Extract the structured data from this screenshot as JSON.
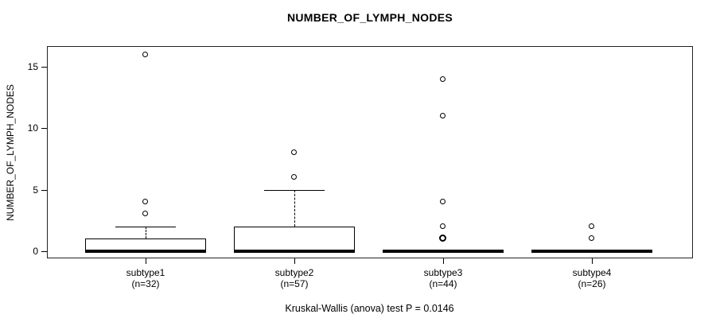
{
  "chart_data": {
    "type": "boxplot",
    "title": "NUMBER_OF_LYMPH_NODES",
    "ylabel": "NUMBER_OF_LYMPH_NODES",
    "caption": "Kruskal-Wallis (anova) test P = 0.0146",
    "ylim": [
      -0.6,
      16.7
    ],
    "yticks": [
      0,
      5,
      10,
      15
    ],
    "grid": false,
    "legend": "none",
    "groups": [
      {
        "label": "subtype1",
        "n_label": "(n=32)",
        "q1": 0,
        "median": 0,
        "q3": 1,
        "whisker_low": 0,
        "whisker_high": 2,
        "outliers": [
          3,
          4,
          16
        ],
        "bold_outliers": []
      },
      {
        "label": "subtype2",
        "n_label": "(n=57)",
        "q1": 0,
        "median": 0,
        "q3": 2,
        "whisker_low": 0,
        "whisker_high": 5,
        "outliers": [
          6,
          8
        ],
        "bold_outliers": []
      },
      {
        "label": "subtype3",
        "n_label": "(n=44)",
        "q1": 0,
        "median": 0,
        "q3": 0,
        "whisker_low": 0,
        "whisker_high": 0,
        "outliers": [
          2,
          4,
          11,
          14
        ],
        "bold_outliers": [
          1
        ]
      },
      {
        "label": "subtype4",
        "n_label": "(n=26)",
        "q1": 0,
        "median": 0,
        "q3": 0,
        "whisker_low": 0,
        "whisker_high": 0,
        "outliers": [
          1,
          2
        ],
        "bold_outliers": []
      }
    ],
    "colors": {
      "line": "#000000",
      "background": "#ffffff",
      "box_fill": "#ffffff"
    }
  }
}
